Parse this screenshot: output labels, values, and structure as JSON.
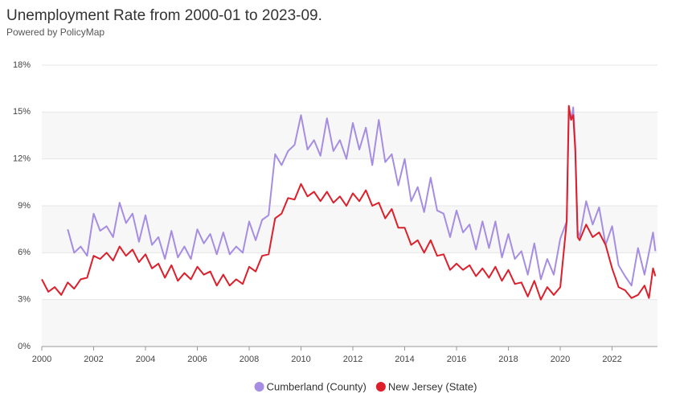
{
  "chart_data": {
    "type": "line",
    "title": "Unemployment Rate from 2000-01 to 2023-09.",
    "subtitle": "Powered by PolicyMap",
    "xlim": [
      2000,
      2023.75
    ],
    "xticks": [
      2000,
      2002,
      2004,
      2006,
      2008,
      2010,
      2012,
      2014,
      2016,
      2018,
      2020,
      2022
    ],
    "ylim": [
      0,
      18
    ],
    "yticks": [
      {
        "value": 0,
        "label": "0%"
      },
      {
        "value": 3,
        "label": "3%"
      },
      {
        "value": 6,
        "label": "6%"
      },
      {
        "value": 9,
        "label": "9%"
      },
      {
        "value": 12,
        "label": "12%"
      },
      {
        "value": 15,
        "label": "15%"
      },
      {
        "value": 18,
        "label": "18%"
      }
    ],
    "grid": true,
    "legend": "bottom",
    "series": [
      {
        "name": "Cumberland (County)",
        "color": "#a68de2",
        "x": [
          2001,
          2001.25,
          2001.5,
          2001.75,
          2002,
          2002.25,
          2002.5,
          2002.75,
          2003,
          2003.25,
          2003.5,
          2003.75,
          2004,
          2004.25,
          2004.5,
          2004.75,
          2005,
          2005.25,
          2005.5,
          2005.75,
          2006,
          2006.25,
          2006.5,
          2006.75,
          2007,
          2007.25,
          2007.5,
          2007.75,
          2008,
          2008.25,
          2008.5,
          2008.75,
          2009,
          2009.25,
          2009.5,
          2009.75,
          2010,
          2010.25,
          2010.5,
          2010.75,
          2011,
          2011.25,
          2011.5,
          2011.75,
          2012,
          2012.25,
          2012.5,
          2012.75,
          2013,
          2013.25,
          2013.5,
          2013.75,
          2014,
          2014.25,
          2014.5,
          2014.75,
          2015,
          2015.25,
          2015.5,
          2015.75,
          2016,
          2016.25,
          2016.5,
          2016.75,
          2017,
          2017.25,
          2017.5,
          2017.75,
          2018,
          2018.25,
          2018.5,
          2018.75,
          2019,
          2019.25,
          2019.5,
          2019.75,
          2020,
          2020.25,
          2020.33,
          2020.42,
          2020.5,
          2020.58,
          2020.67,
          2020.75,
          2021,
          2021.25,
          2021.5,
          2021.75,
          2022,
          2022.25,
          2022.5,
          2022.75,
          2023,
          2023.25,
          2023.42,
          2023.58,
          2023.67
        ],
        "values": [
          7.5,
          6.0,
          6.4,
          5.8,
          8.5,
          7.4,
          7.7,
          7.0,
          9.2,
          7.9,
          8.5,
          6.7,
          8.4,
          6.5,
          7.0,
          5.6,
          7.4,
          5.7,
          6.4,
          5.6,
          7.5,
          6.6,
          7.2,
          5.9,
          7.3,
          5.9,
          6.4,
          6.0,
          8.0,
          6.8,
          8.1,
          8.4,
          12.3,
          11.6,
          12.5,
          12.9,
          14.8,
          12.6,
          13.2,
          12.2,
          14.6,
          12.5,
          13.2,
          12.0,
          14.3,
          12.6,
          14.0,
          11.6,
          14.5,
          11.8,
          12.3,
          10.3,
          12.0,
          9.3,
          10.2,
          8.6,
          10.8,
          8.7,
          8.5,
          7.0,
          8.7,
          7.3,
          7.8,
          6.2,
          8.0,
          6.3,
          8.0,
          5.7,
          7.2,
          5.6,
          6.1,
          4.6,
          6.6,
          4.3,
          5.6,
          4.6,
          6.9,
          8.0,
          14.8,
          14.5,
          15.3,
          12.8,
          7.4,
          7.0,
          9.3,
          7.8,
          8.9,
          6.5,
          7.7,
          5.2,
          4.5,
          3.9,
          6.3,
          4.6,
          6.0,
          7.3,
          6.1
        ]
      },
      {
        "name": "New Jersey (State)",
        "color": "#dc1f2a",
        "x": [
          2000,
          2000.25,
          2000.5,
          2000.75,
          2001,
          2001.25,
          2001.5,
          2001.75,
          2002,
          2002.25,
          2002.5,
          2002.75,
          2003,
          2003.25,
          2003.5,
          2003.75,
          2004,
          2004.25,
          2004.5,
          2004.75,
          2005,
          2005.25,
          2005.5,
          2005.75,
          2006,
          2006.25,
          2006.5,
          2006.75,
          2007,
          2007.25,
          2007.5,
          2007.75,
          2008,
          2008.25,
          2008.5,
          2008.75,
          2009,
          2009.25,
          2009.5,
          2009.75,
          2010,
          2010.25,
          2010.5,
          2010.75,
          2011,
          2011.25,
          2011.5,
          2011.75,
          2012,
          2012.25,
          2012.5,
          2012.75,
          2013,
          2013.25,
          2013.5,
          2013.75,
          2014,
          2014.25,
          2014.5,
          2014.75,
          2015,
          2015.25,
          2015.5,
          2015.75,
          2016,
          2016.25,
          2016.5,
          2016.75,
          2017,
          2017.25,
          2017.5,
          2017.75,
          2018,
          2018.25,
          2018.5,
          2018.75,
          2019,
          2019.25,
          2019.5,
          2019.75,
          2020,
          2020.25,
          2020.33,
          2020.42,
          2020.5,
          2020.58,
          2020.67,
          2020.75,
          2021,
          2021.25,
          2021.5,
          2021.75,
          2022,
          2022.25,
          2022.5,
          2022.75,
          2023,
          2023.25,
          2023.42,
          2023.58,
          2023.67
        ],
        "values": [
          4.3,
          3.5,
          3.8,
          3.3,
          4.1,
          3.7,
          4.3,
          4.4,
          5.8,
          5.6,
          6.0,
          5.5,
          6.4,
          5.8,
          6.2,
          5.4,
          5.9,
          5.0,
          5.3,
          4.4,
          5.2,
          4.2,
          4.7,
          4.3,
          5.1,
          4.6,
          4.8,
          3.9,
          4.6,
          3.9,
          4.3,
          4.0,
          5.1,
          4.8,
          5.8,
          5.9,
          8.2,
          8.5,
          9.5,
          9.4,
          10.4,
          9.6,
          9.9,
          9.3,
          9.9,
          9.2,
          9.6,
          9.0,
          9.8,
          9.3,
          10.0,
          9.0,
          9.2,
          8.2,
          8.8,
          7.6,
          7.6,
          6.5,
          6.8,
          6.0,
          6.8,
          5.8,
          5.9,
          4.9,
          5.3,
          4.9,
          5.2,
          4.5,
          5.0,
          4.4,
          5.1,
          4.2,
          4.9,
          4.0,
          4.1,
          3.2,
          4.2,
          3.0,
          3.8,
          3.3,
          3.8,
          8.0,
          15.4,
          14.5,
          14.8,
          12.5,
          7.0,
          6.8,
          7.8,
          7.0,
          7.3,
          6.5,
          5.0,
          3.8,
          3.6,
          3.1,
          3.3,
          3.9,
          3.1,
          5.0,
          4.5
        ]
      }
    ]
  }
}
